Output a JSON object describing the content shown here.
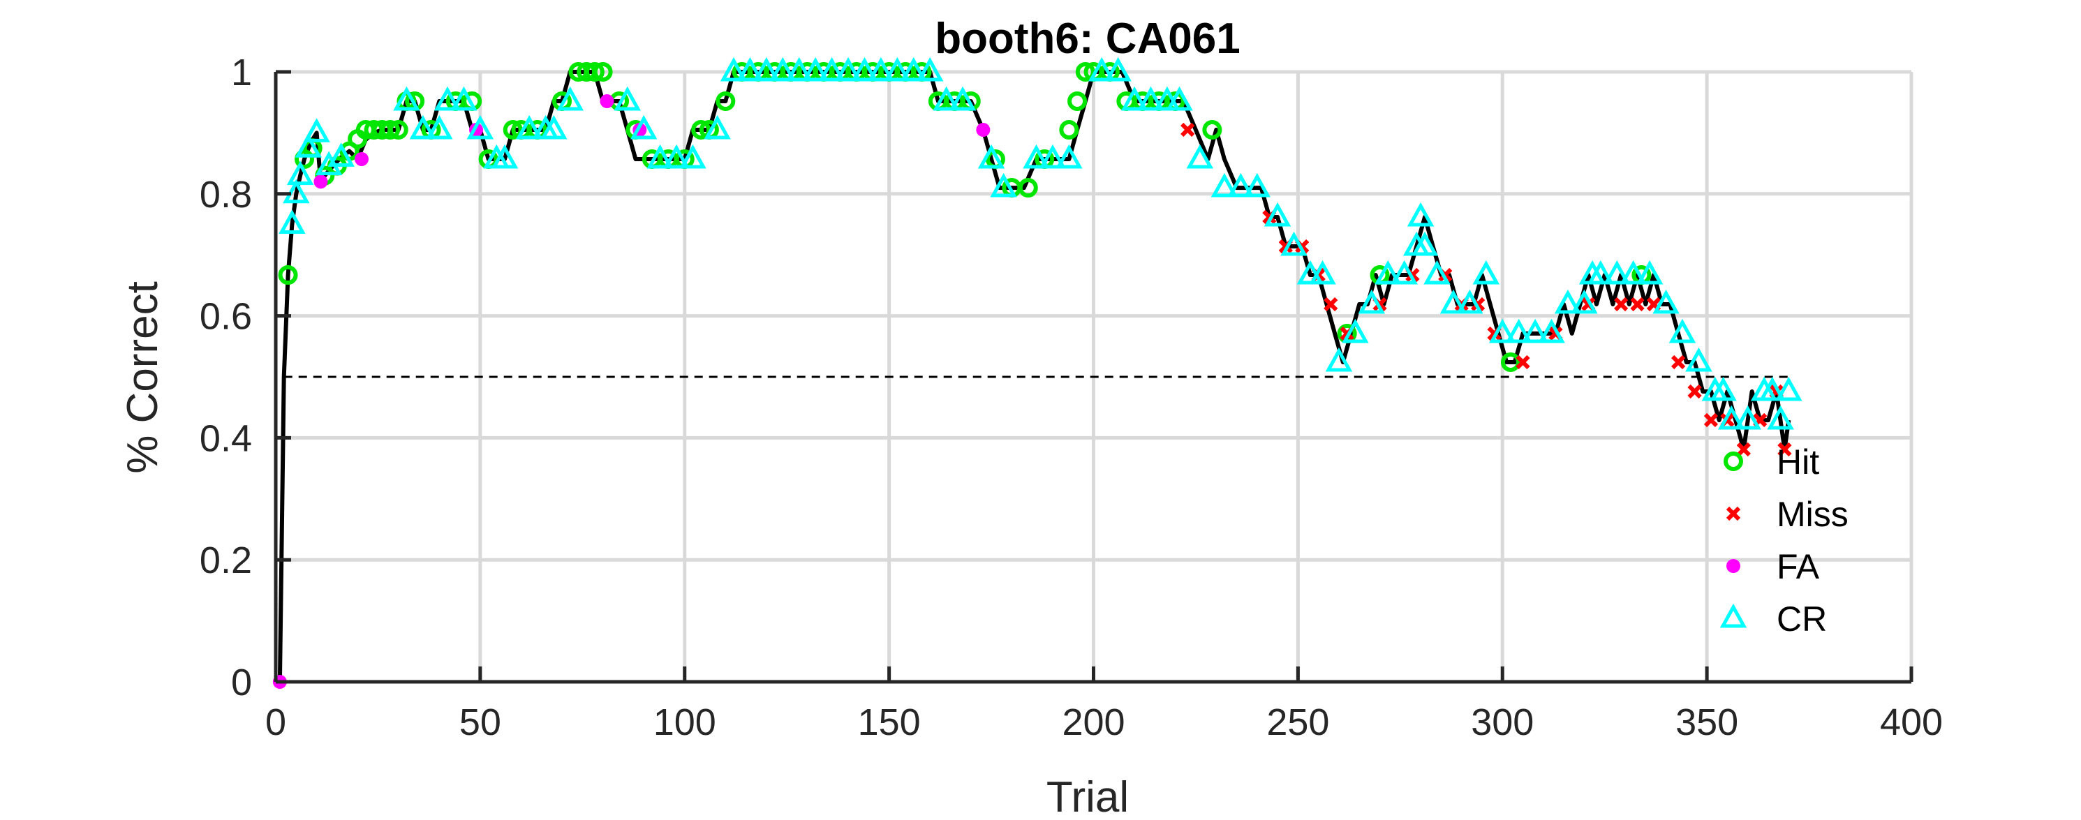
{
  "chart_data": {
    "type": "line",
    "title": "booth6: CA061",
    "xlabel": "Trial",
    "ylabel": "% Correct",
    "xlim": [
      0,
      400
    ],
    "ylim": [
      0,
      1
    ],
    "xticks": [
      0,
      50,
      100,
      150,
      200,
      250,
      300,
      350,
      400
    ],
    "yticks": [
      0,
      0.2,
      0.4,
      0.6,
      0.8,
      1
    ],
    "xtick_labels": [
      "0",
      "50",
      "100",
      "150",
      "200",
      "250",
      "300",
      "350",
      "400"
    ],
    "ytick_labels": [
      "0",
      "0.2",
      "0.4",
      "0.6",
      "0.8",
      "1"
    ],
    "grid": true,
    "chance_line": 0.5,
    "legend": {
      "location": "bottom-right",
      "entries": [
        {
          "name": "Hit",
          "marker": "circle-open",
          "color": "#00e600"
        },
        {
          "name": "Miss",
          "marker": "x",
          "color": "#ff0000"
        },
        {
          "name": "FA",
          "marker": "dot",
          "color": "#ff00ff"
        },
        {
          "name": "CR",
          "marker": "triangle-open",
          "color": "#00ffff"
        }
      ]
    },
    "line_color": "#000000",
    "performance_curve": {
      "x": [
        1,
        2,
        3,
        4,
        5,
        6,
        7,
        8,
        9,
        10,
        11,
        12,
        14,
        16,
        18,
        20,
        22,
        24,
        26,
        28,
        30,
        32,
        34,
        36,
        38,
        40,
        42,
        44,
        46,
        48,
        50,
        52,
        54,
        56,
        58,
        60,
        62,
        64,
        66,
        68,
        70,
        72,
        74,
        76,
        78,
        80,
        82,
        84,
        86,
        88,
        90,
        92,
        94,
        96,
        98,
        100,
        102,
        104,
        106,
        108,
        110,
        112,
        115,
        120,
        130,
        140,
        150,
        160,
        162,
        165,
        170,
        173,
        175,
        177,
        180,
        183,
        186,
        190,
        194,
        196,
        198,
        200,
        204,
        207,
        210,
        214,
        218,
        222,
        225,
        228,
        230,
        232,
        235,
        238,
        241,
        243,
        245,
        247,
        249,
        251,
        253,
        255,
        257,
        259,
        261,
        263,
        265,
        267,
        269,
        271,
        273,
        275,
        277,
        279,
        281,
        283,
        285,
        287,
        289,
        291,
        293,
        295,
        297,
        299,
        301,
        303,
        305,
        307,
        309,
        311,
        313,
        315,
        317,
        319,
        321,
        323,
        325,
        327,
        329,
        331,
        333,
        335,
        337,
        339,
        341,
        343,
        345,
        347,
        349,
        351,
        353,
        355,
        357,
        359,
        361,
        363,
        365,
        367,
        369,
        370
      ],
      "y": [
        0.0,
        0.5,
        0.667,
        0.75,
        0.8,
        0.83,
        0.857,
        0.875,
        0.889,
        0.9,
        0.82,
        0.83,
        0.846,
        0.86,
        0.87,
        0.857,
        0.889,
        0.9,
        0.905,
        0.905,
        0.905,
        0.952,
        0.952,
        0.905,
        0.905,
        0.952,
        0.952,
        0.952,
        0.952,
        0.905,
        0.905,
        0.857,
        0.857,
        0.857,
        0.905,
        0.905,
        0.905,
        0.905,
        0.905,
        0.952,
        0.952,
        1.0,
        1.0,
        1.0,
        1.0,
        0.952,
        0.952,
        0.952,
        0.905,
        0.857,
        0.857,
        0.857,
        0.857,
        0.857,
        0.857,
        0.857,
        0.905,
        0.905,
        0.905,
        0.952,
        0.952,
        1.0,
        1.0,
        1.0,
        1.0,
        1.0,
        1.0,
        1.0,
        0.952,
        0.952,
        0.952,
        0.905,
        0.857,
        0.81,
        0.81,
        0.81,
        0.857,
        0.857,
        0.857,
        0.905,
        0.952,
        1.0,
        1.0,
        1.0,
        0.952,
        0.952,
        0.952,
        0.952,
        0.905,
        0.857,
        0.905,
        0.857,
        0.81,
        0.81,
        0.81,
        0.762,
        0.762,
        0.714,
        0.714,
        0.714,
        0.667,
        0.667,
        0.619,
        0.571,
        0.524,
        0.571,
        0.619,
        0.619,
        0.667,
        0.619,
        0.667,
        0.667,
        0.667,
        0.714,
        0.762,
        0.714,
        0.667,
        0.667,
        0.619,
        0.619,
        0.619,
        0.667,
        0.619,
        0.571,
        0.524,
        0.524,
        0.571,
        0.571,
        0.571,
        0.571,
        0.571,
        0.619,
        0.571,
        0.619,
        0.667,
        0.619,
        0.667,
        0.619,
        0.667,
        0.619,
        0.667,
        0.619,
        0.667,
        0.619,
        0.619,
        0.571,
        0.524,
        0.524,
        0.476,
        0.476,
        0.429,
        0.476,
        0.429,
        0.381,
        0.476,
        0.429,
        0.429,
        0.476,
        0.381,
        0.429
      ]
    },
    "series": [
      {
        "name": "Hit",
        "x": [
          3,
          7,
          9,
          12,
          15,
          18,
          20,
          22,
          24,
          26,
          28,
          30,
          32,
          34,
          38,
          44,
          48,
          52,
          58,
          60,
          64,
          70,
          74,
          76,
          78,
          80,
          84,
          88,
          92,
          96,
          100,
          104,
          106,
          110,
          114,
          118,
          122,
          126,
          130,
          134,
          138,
          142,
          146,
          150,
          154,
          158,
          162,
          166,
          170,
          176,
          180,
          184,
          188,
          194,
          196,
          198,
          200,
          204,
          208,
          212,
          216,
          220,
          229,
          262,
          270,
          302,
          334
        ],
        "y": [
          0.667,
          0.857,
          0.875,
          0.83,
          0.846,
          0.87,
          0.89,
          0.905,
          0.905,
          0.905,
          0.905,
          0.905,
          0.952,
          0.952,
          0.905,
          0.952,
          0.952,
          0.857,
          0.905,
          0.905,
          0.905,
          0.952,
          1.0,
          1.0,
          1.0,
          1.0,
          0.952,
          0.905,
          0.857,
          0.857,
          0.857,
          0.905,
          0.905,
          0.952,
          1.0,
          1.0,
          1.0,
          1.0,
          1.0,
          1.0,
          1.0,
          1.0,
          1.0,
          1.0,
          1.0,
          1.0,
          0.952,
          0.952,
          0.952,
          0.857,
          0.81,
          0.81,
          0.857,
          0.905,
          0.952,
          1.0,
          1.0,
          1.0,
          0.952,
          0.952,
          0.952,
          0.952,
          0.905,
          0.571,
          0.667,
          0.524,
          0.667
        ]
      },
      {
        "name": "Miss",
        "x": [
          223,
          243,
          247,
          251,
          255,
          258,
          262,
          270,
          278,
          286,
          290,
          294,
          298,
          305,
          313,
          321,
          329,
          333,
          337,
          343,
          347,
          351,
          355,
          359,
          363,
          367,
          369
        ],
        "y": [
          0.905,
          0.762,
          0.714,
          0.714,
          0.667,
          0.619,
          0.571,
          0.619,
          0.667,
          0.667,
          0.619,
          0.619,
          0.571,
          0.524,
          0.571,
          0.619,
          0.619,
          0.619,
          0.619,
          0.524,
          0.476,
          0.429,
          0.429,
          0.381,
          0.429,
          0.476,
          0.381
        ]
      },
      {
        "name": "FA",
        "x": [
          1,
          11,
          21,
          49,
          81,
          89,
          173
        ],
        "y": [
          0.0,
          0.82,
          0.857,
          0.905,
          0.952,
          0.905,
          0.905
        ]
      },
      {
        "name": "CR",
        "x": [
          4,
          5,
          6,
          8,
          10,
          13,
          16,
          32,
          36,
          40,
          42,
          46,
          50,
          54,
          56,
          62,
          66,
          68,
          72,
          86,
          90,
          94,
          98,
          102,
          108,
          112,
          116,
          120,
          124,
          128,
          132,
          136,
          140,
          144,
          148,
          152,
          156,
          160,
          164,
          168,
          175,
          178,
          186,
          190,
          194,
          202,
          206,
          210,
          214,
          218,
          221,
          226,
          232,
          236,
          240,
          245,
          249,
          253,
          256,
          260,
          264,
          268,
          272,
          276,
          279,
          280,
          281,
          284,
          288,
          292,
          296,
          300,
          304,
          308,
          312,
          316,
          320,
          322,
          324,
          328,
          332,
          336,
          340,
          344,
          348,
          352,
          354,
          356,
          360,
          364,
          366,
          368,
          370
        ],
        "y": [
          0.75,
          0.8,
          0.83,
          0.875,
          0.9,
          0.846,
          0.86,
          0.952,
          0.905,
          0.905,
          0.952,
          0.952,
          0.905,
          0.857,
          0.857,
          0.905,
          0.905,
          0.905,
          0.952,
          0.952,
          0.905,
          0.857,
          0.857,
          0.857,
          0.905,
          1.0,
          1.0,
          1.0,
          1.0,
          1.0,
          1.0,
          1.0,
          1.0,
          1.0,
          1.0,
          1.0,
          1.0,
          1.0,
          0.952,
          0.952,
          0.857,
          0.81,
          0.857,
          0.857,
          0.857,
          1.0,
          1.0,
          0.952,
          0.952,
          0.952,
          0.952,
          0.857,
          0.81,
          0.81,
          0.81,
          0.762,
          0.714,
          0.667,
          0.667,
          0.524,
          0.571,
          0.619,
          0.667,
          0.667,
          0.714,
          0.762,
          0.714,
          0.667,
          0.619,
          0.619,
          0.667,
          0.571,
          0.571,
          0.571,
          0.571,
          0.619,
          0.619,
          0.667,
          0.667,
          0.667,
          0.667,
          0.667,
          0.619,
          0.571,
          0.524,
          0.476,
          0.476,
          0.429,
          0.429,
          0.476,
          0.476,
          0.429,
          0.476
        ]
      }
    ]
  }
}
